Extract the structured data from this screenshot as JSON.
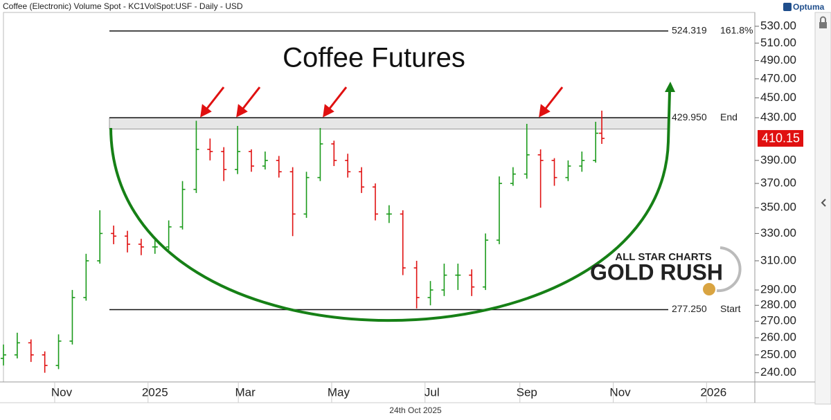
{
  "chart_data": {
    "type": "ohlc",
    "header": "Coffee (Electronic) Volume Spot - KC1VolSpot:USF - Daily - USD",
    "title": "Coffee Futures",
    "brand": "Optuma",
    "footer_date": "24th Oct 2025",
    "watermark": [
      "ALL STAR CHARTS",
      "GOLD RUSH"
    ],
    "up_color": "#1a9a1a",
    "down_color": "#e01010",
    "log_scale": true,
    "xlim": [
      0,
      491
    ],
    "xticks": [
      {
        "value": 38,
        "label": "Nov"
      },
      {
        "value": 99,
        "label": "2025"
      },
      {
        "value": 158,
        "label": "Mar"
      },
      {
        "value": 219,
        "label": "May"
      },
      {
        "value": 280,
        "label": "Jul"
      },
      {
        "value": 342,
        "label": "Sep"
      },
      {
        "value": 403,
        "label": "Nov"
      },
      {
        "value": 464,
        "label": "2026"
      }
    ],
    "ylim": [
      235,
      547
    ],
    "yticks": [
      {
        "value": 240,
        "label": "240.00"
      },
      {
        "value": 250,
        "label": "250.00"
      },
      {
        "value": 260,
        "label": "260.00"
      },
      {
        "value": 270,
        "label": "270.00"
      },
      {
        "value": 280,
        "label": "280.00"
      },
      {
        "value": 290,
        "label": "290.00"
      },
      {
        "value": 310,
        "label": "310.00"
      },
      {
        "value": 330,
        "label": "330.00"
      },
      {
        "value": 350,
        "label": "350.00"
      },
      {
        "value": 370,
        "label": "370.00"
      },
      {
        "value": 390,
        "label": "390.00"
      },
      {
        "value": 430,
        "label": "430.00"
      },
      {
        "value": 450,
        "label": "450.00"
      },
      {
        "value": 470,
        "label": "470.00"
      },
      {
        "value": 490,
        "label": "490.00"
      },
      {
        "value": 510,
        "label": "510.00"
      },
      {
        "value": 530,
        "label": "530.00"
      }
    ],
    "x": [
      0,
      9,
      18,
      27,
      36,
      45,
      54,
      63,
      72,
      81,
      90,
      99,
      108,
      117,
      126,
      135,
      144,
      153,
      162,
      171,
      180,
      189,
      198,
      207,
      216,
      225,
      234,
      243,
      252,
      261,
      270,
      279,
      288,
      297,
      306,
      315,
      324,
      333,
      342,
      351,
      360,
      369,
      378,
      387,
      391
    ],
    "open": [
      248,
      250,
      257,
      250,
      244,
      258,
      285,
      310,
      330,
      328,
      322,
      320,
      320,
      335,
      365,
      400,
      398,
      382,
      398,
      385,
      390,
      380,
      345,
      375,
      405,
      390,
      380,
      367,
      345,
      345,
      305,
      285,
      290,
      300,
      300,
      292,
      325,
      370,
      378,
      395,
      390,
      375,
      385,
      390,
      415
    ],
    "high": [
      256,
      263,
      259,
      252,
      262,
      290,
      315,
      348,
      336,
      332,
      326,
      325,
      340,
      372,
      427,
      410,
      402,
      422,
      400,
      398,
      394,
      384,
      380,
      420,
      408,
      396,
      384,
      370,
      352,
      348,
      310,
      296,
      308,
      308,
      304,
      330,
      376,
      384,
      424,
      400,
      392,
      390,
      398,
      426,
      437
    ],
    "low": [
      244,
      248,
      246,
      240,
      242,
      256,
      283,
      308,
      322,
      316,
      314,
      315,
      318,
      333,
      362,
      390,
      372,
      378,
      380,
      382,
      375,
      328,
      342,
      372,
      385,
      375,
      362,
      340,
      338,
      300,
      278,
      280,
      286,
      290,
      286,
      290,
      322,
      368,
      374,
      350,
      368,
      372,
      380,
      388,
      405
    ],
    "close": [
      250,
      257,
      250,
      244,
      258,
      285,
      310,
      330,
      328,
      322,
      320,
      320,
      335,
      365,
      400,
      398,
      382,
      398,
      385,
      390,
      380,
      345,
      375,
      405,
      390,
      380,
      367,
      345,
      345,
      305,
      285,
      290,
      300,
      300,
      292,
      325,
      370,
      378,
      395,
      390,
      375,
      385,
      390,
      415,
      410.15
    ],
    "levels": [
      {
        "name": "161.8%",
        "value": 524.319
      },
      {
        "name": "End",
        "value": 429.95,
        "label": "429.950"
      },
      {
        "name": "Start",
        "value": 277.25,
        "label": "277.250"
      }
    ],
    "zone_low": 419
  }
}
